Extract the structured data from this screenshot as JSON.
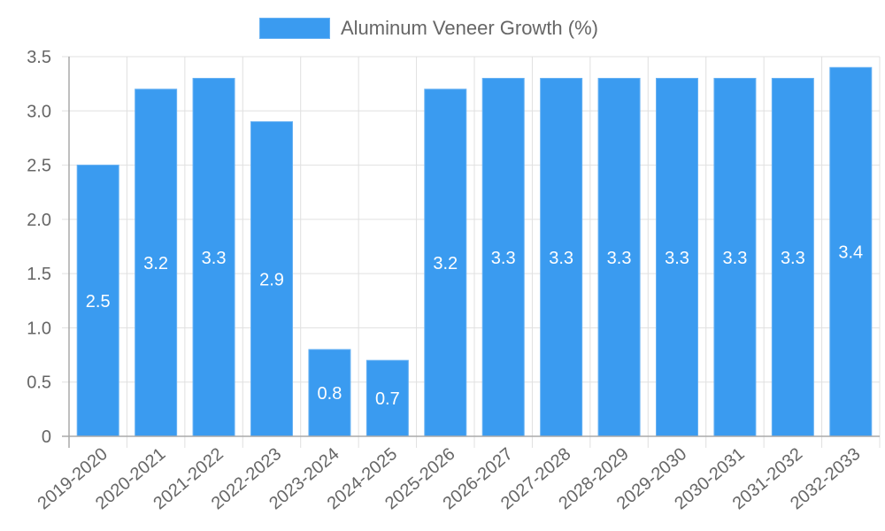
{
  "legend": {
    "label": "Aluminum Veneer Growth (%)",
    "color": "#3a9bf0"
  },
  "chart_data": {
    "type": "bar",
    "title": "",
    "xlabel": "",
    "ylabel": "",
    "legend": [
      "Aluminum Veneer Growth (%)"
    ],
    "legend_position": "top",
    "grid": true,
    "ylim": [
      0,
      3.5
    ],
    "yticks": [
      "0",
      "0.5",
      "1.0",
      "1.5",
      "2.0",
      "2.5",
      "3.0",
      "3.5"
    ],
    "categories": [
      "2019-2020",
      "2020-2021",
      "2021-2022",
      "2022-2023",
      "2023-2024",
      "2024-2025",
      "2025-2026",
      "2026-2027",
      "2027-2028",
      "2028-2029",
      "2029-2030",
      "2030-2031",
      "2031-2032",
      "2032-2033"
    ],
    "series": [
      {
        "name": "Aluminum Veneer Growth (%)",
        "color": "#3a9bf0",
        "values": [
          2.5,
          3.2,
          3.3,
          2.9,
          0.8,
          0.7,
          3.2,
          3.3,
          3.3,
          3.3,
          3.3,
          3.3,
          3.3,
          3.4
        ]
      }
    ],
    "data_labels": [
      "2.5",
      "3.2",
      "3.3",
      "2.9",
      "0.8",
      "0.7",
      "3.2",
      "3.3",
      "3.3",
      "3.3",
      "3.3",
      "3.3",
      "3.3",
      "3.4"
    ]
  }
}
